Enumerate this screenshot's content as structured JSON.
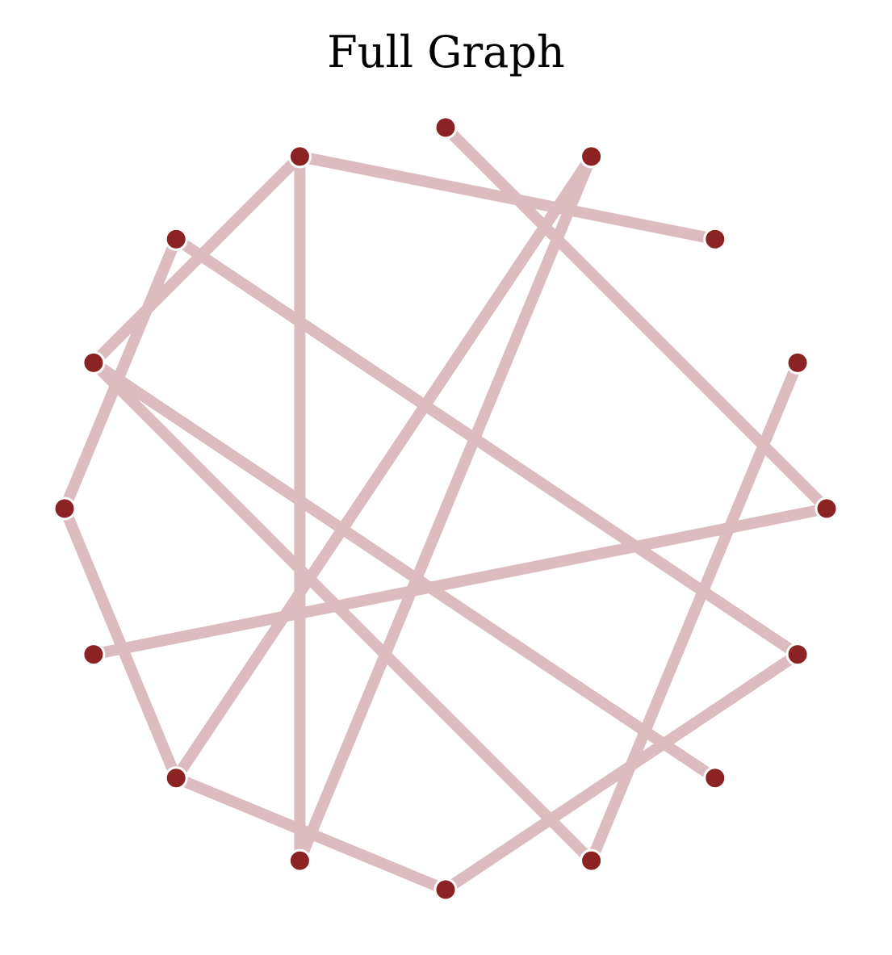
{
  "title": "Full Graph",
  "colors": {
    "node_fill": "#8b2325",
    "node_stroke": "#ffffff",
    "edge": "#dcbcbf",
    "background": "#ffffff"
  },
  "graph": {
    "layout": "circular",
    "node_count": 16,
    "nodes": [
      {
        "id": "n0"
      },
      {
        "id": "n1"
      },
      {
        "id": "n2"
      },
      {
        "id": "n3"
      },
      {
        "id": "n4"
      },
      {
        "id": "n5"
      },
      {
        "id": "n6"
      },
      {
        "id": "n7"
      },
      {
        "id": "n8"
      },
      {
        "id": "n9"
      },
      {
        "id": "n10"
      },
      {
        "id": "n11"
      },
      {
        "id": "n12"
      },
      {
        "id": "n13"
      },
      {
        "id": "n14"
      },
      {
        "id": "n15"
      }
    ],
    "edges": [
      [
        "n0",
        "n12"
      ],
      [
        "n1",
        "n3"
      ],
      [
        "n1",
        "n7"
      ],
      [
        "n1",
        "n14"
      ],
      [
        "n2",
        "n4"
      ],
      [
        "n2",
        "n11"
      ],
      [
        "n3",
        "n9"
      ],
      [
        "n3",
        "n10"
      ],
      [
        "n4",
        "n6"
      ],
      [
        "n5",
        "n12"
      ],
      [
        "n6",
        "n8"
      ],
      [
        "n6",
        "n15"
      ],
      [
        "n7",
        "n15"
      ],
      [
        "n8",
        "n11"
      ],
      [
        "n9",
        "n13"
      ]
    ]
  }
}
